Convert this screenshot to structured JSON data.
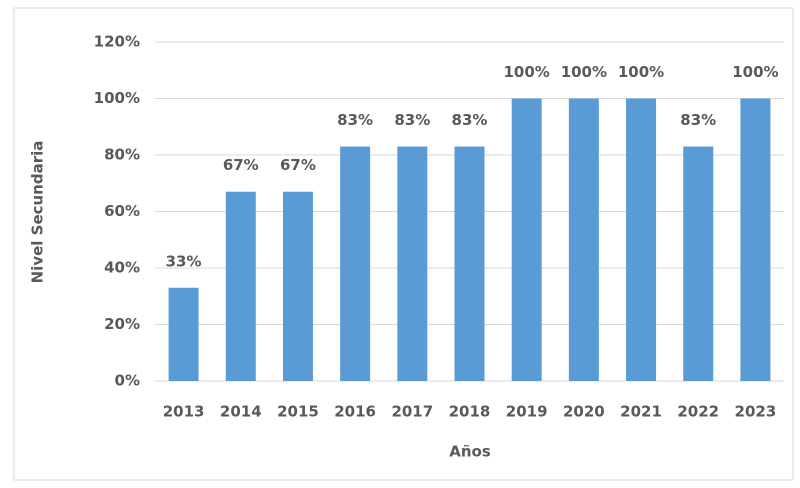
{
  "chart_data": {
    "type": "bar",
    "x_label": "Años",
    "y_label": "Nivel Secundaria",
    "categories": [
      "2013",
      "2014",
      "2015",
      "2016",
      "2017",
      "2018",
      "2019",
      "2020",
      "2021",
      "2022",
      "2023"
    ],
    "values": [
      33,
      67,
      67,
      83,
      83,
      83,
      100,
      100,
      100,
      83,
      100
    ],
    "value_labels": [
      "33%",
      "67%",
      "67%",
      "83%",
      "83%",
      "83%",
      "100%",
      "100%",
      "100%",
      "83%",
      "100%"
    ],
    "color": "#5b9bd5",
    "ylim": [
      0,
      120
    ],
    "yticks": [
      {
        "value": 0,
        "label": "0%"
      },
      {
        "value": 20,
        "label": "20%"
      },
      {
        "value": 40,
        "label": "40%"
      },
      {
        "value": 60,
        "label": "60%"
      },
      {
        "value": 80,
        "label": "80%"
      },
      {
        "value": 100,
        "label": "100%"
      },
      {
        "value": 120,
        "label": "120%"
      }
    ],
    "grid": true
  }
}
